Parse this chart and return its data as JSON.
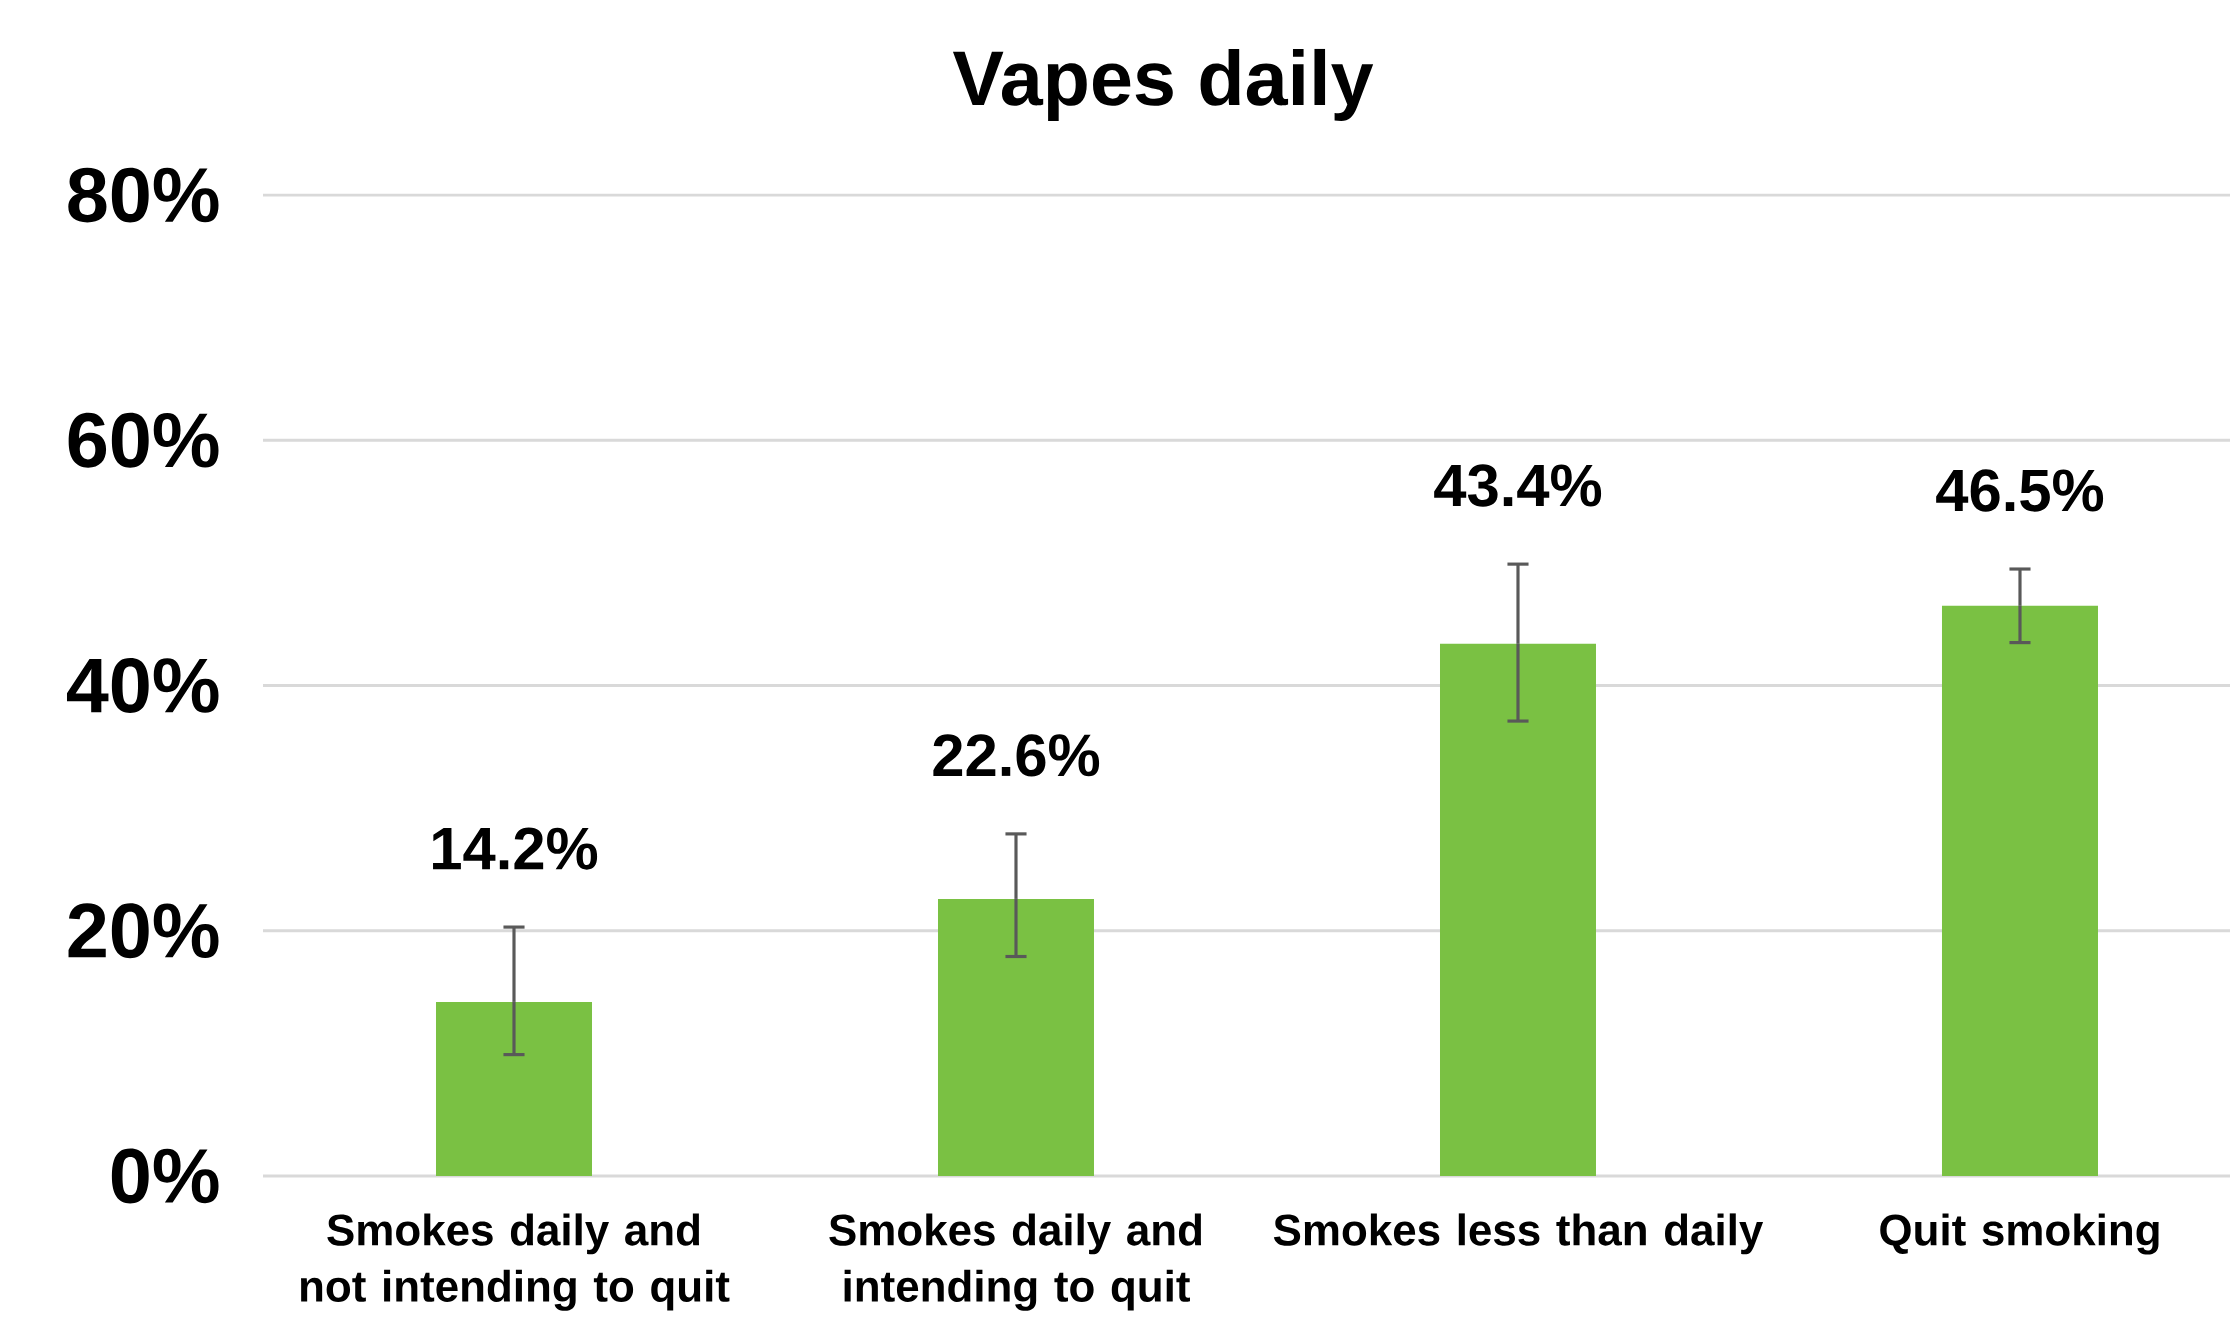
{
  "chart_data": {
    "type": "bar",
    "title": "Vapes daily",
    "categories": [
      "Smokes daily and not intending to quit",
      "Smokes daily and intending to quit",
      "Smokes less than daily",
      "Quit smoking"
    ],
    "values": [
      14.2,
      22.6,
      43.4,
      46.5
    ],
    "errors": [
      [
        9.9,
        20.3
      ],
      [
        17.9,
        27.9
      ],
      [
        37.1,
        49.9
      ],
      [
        43.5,
        49.5
      ]
    ],
    "value_labels": [
      "14.2%",
      "22.6%",
      "43.4%",
      "46.5%"
    ],
    "color": "#7ac143",
    "ylim": [
      0,
      80
    ],
    "yticks": [
      {
        "value": 0,
        "label": "0%"
      },
      {
        "value": 20,
        "label": "20%"
      },
      {
        "value": 40,
        "label": "40%"
      },
      {
        "value": 60,
        "label": "60%"
      },
      {
        "value": 80,
        "label": "80%"
      }
    ],
    "grid": "y"
  }
}
